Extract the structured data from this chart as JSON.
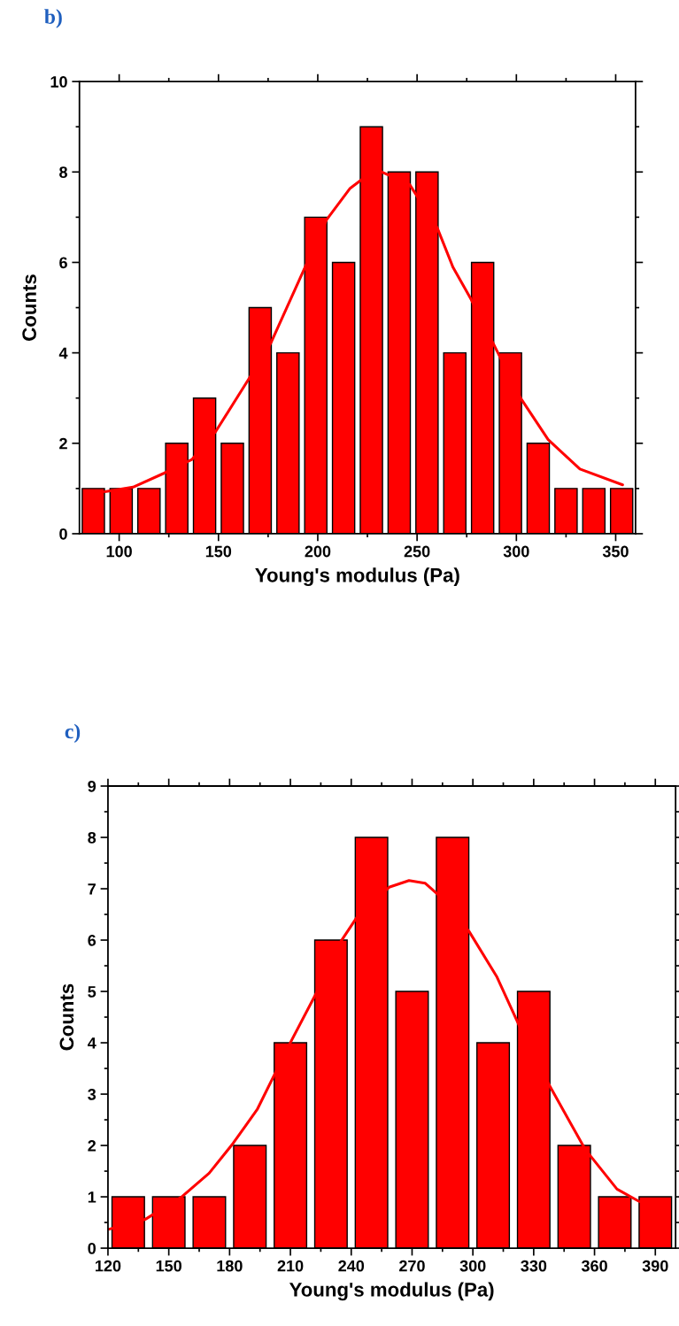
{
  "chart_data": [
    {
      "type": "histogram",
      "title": "b)",
      "xlabel": "Young's modulus (Pa)",
      "ylabel": "Counts",
      "color": "#ff0000",
      "bins": [
        80,
        94,
        108,
        122,
        136,
        150,
        164,
        178,
        192,
        206,
        220,
        234,
        248,
        262,
        276,
        290,
        304,
        318,
        332,
        346,
        360
      ],
      "values": [
        1,
        1,
        1,
        2,
        3,
        2,
        5,
        4,
        7,
        6,
        9,
        8,
        8,
        4,
        6,
        4,
        2,
        1,
        1,
        1
      ],
      "series": [
        {
          "type": "line",
          "color": "#ff0000",
          "x": [
            92.8,
            107,
            122.7,
            136.6,
            148.6,
            165.5,
            176.5,
            194.5,
            204.4,
            216.3,
            226.3,
            232.3,
            246.3,
            260.2,
            268.1,
            277.1,
            288.1,
            302.1,
            316,
            332,
            353.5
          ],
          "values": [
            0.93,
            1.03,
            1.34,
            1.64,
            2.26,
            3.44,
            4.23,
            5.98,
            6.94,
            7.64,
            7.97,
            8.0,
            7.72,
            6.76,
            5.89,
            5.19,
            4.23,
            3.0,
            2.08,
            1.43,
            1.08
          ]
        }
      ],
      "xlim": [
        80,
        360
      ],
      "xticks": [
        100,
        150,
        200,
        250,
        300,
        350
      ],
      "ylim": [
        0,
        10
      ],
      "yticks": [
        0,
        2,
        4,
        6,
        8,
        10
      ],
      "grid": false,
      "legend": false
    },
    {
      "type": "histogram",
      "title": "c)",
      "xlabel": "Young's modulus (Pa)",
      "ylabel": "Counts",
      "color": "#ff0000",
      "bins": [
        120,
        140,
        160,
        180,
        200,
        220,
        240,
        260,
        280,
        300,
        320,
        340,
        360,
        380,
        400
      ],
      "values": [
        1,
        1,
        1,
        2,
        4,
        6,
        8,
        5,
        8,
        4,
        5,
        2,
        1,
        1
      ],
      "series": [
        {
          "type": "line",
          "color": "#ff0000",
          "x": [
            120.6,
            138.3,
            156.1,
            169.9,
            181.7,
            193.6,
            209.3,
            223.2,
            235,
            242.9,
            258.7,
            268.5,
            276.4,
            283.3,
            298.1,
            311.9,
            322.8,
            337.6,
            355.3,
            371.1,
            382
          ],
          "values": [
            0.37,
            0.56,
            0.99,
            1.46,
            2.04,
            2.7,
            3.95,
            5.0,
            5.98,
            6.45,
            7.03,
            7.16,
            7.11,
            6.87,
            6.17,
            5.28,
            4.34,
            3.18,
            1.93,
            1.15,
            0.91
          ]
        }
      ],
      "xlim": [
        120,
        400
      ],
      "xticks": [
        120,
        150,
        180,
        210,
        240,
        270,
        300,
        330,
        360,
        390
      ],
      "ylim": [
        0,
        9
      ],
      "yticks": [
        0,
        1,
        2,
        3,
        4,
        5,
        6,
        7,
        8,
        9
      ],
      "grid": false,
      "legend": false
    }
  ]
}
